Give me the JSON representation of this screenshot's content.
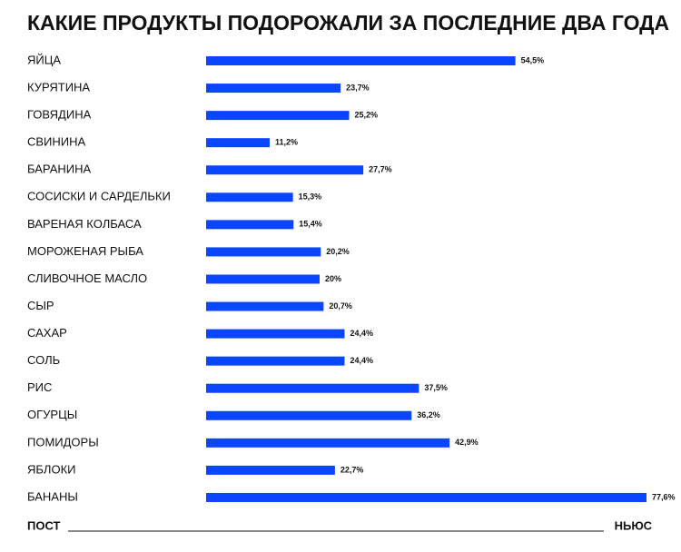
{
  "chart_data": {
    "type": "bar",
    "orientation": "horizontal",
    "title": "КАКИЕ ПРОДУКТЫ ПОДОРОЖАЛИ ЗА ПОСЛЕДНИЕ ДВА ГОДА",
    "categories": [
      "ЯЙЦА",
      "КУРЯТИНА",
      "ГОВЯДИНА",
      "СВИНИНА",
      "БАРАНИНА",
      "СОСИСКИ И САРДЕЛЬКИ",
      "ВАРЕНАЯ КОЛБАСА",
      "МОРОЖЕНАЯ РЫБА",
      "СЛИВОЧНОЕ МАСЛО",
      "СЫР",
      "САХАР",
      "СОЛЬ",
      "РИС",
      "ОГУРЦЫ",
      "ПОМИДОРЫ",
      "ЯБЛОКИ",
      "БАНАНЫ"
    ],
    "values": [
      54.5,
      23.7,
      25.2,
      11.2,
      27.7,
      15.3,
      15.4,
      20.2,
      20,
      20.7,
      24.4,
      24.4,
      37.5,
      36.2,
      42.9,
      22.7,
      77.6
    ],
    "value_labels": [
      "54,5%",
      "23,7%",
      "25,2%",
      "11,2%",
      "27,7%",
      "15,3%",
      "15,4%",
      "20,2%",
      "20%",
      "20,7%",
      "24,4%",
      "24,4%",
      "37,5%",
      "36,2%",
      "42,9%",
      "22,7%",
      "77,6%"
    ],
    "color": "#0a46ff",
    "footer_left": "ПОСТ",
    "footer_right": "НЬЮС"
  }
}
